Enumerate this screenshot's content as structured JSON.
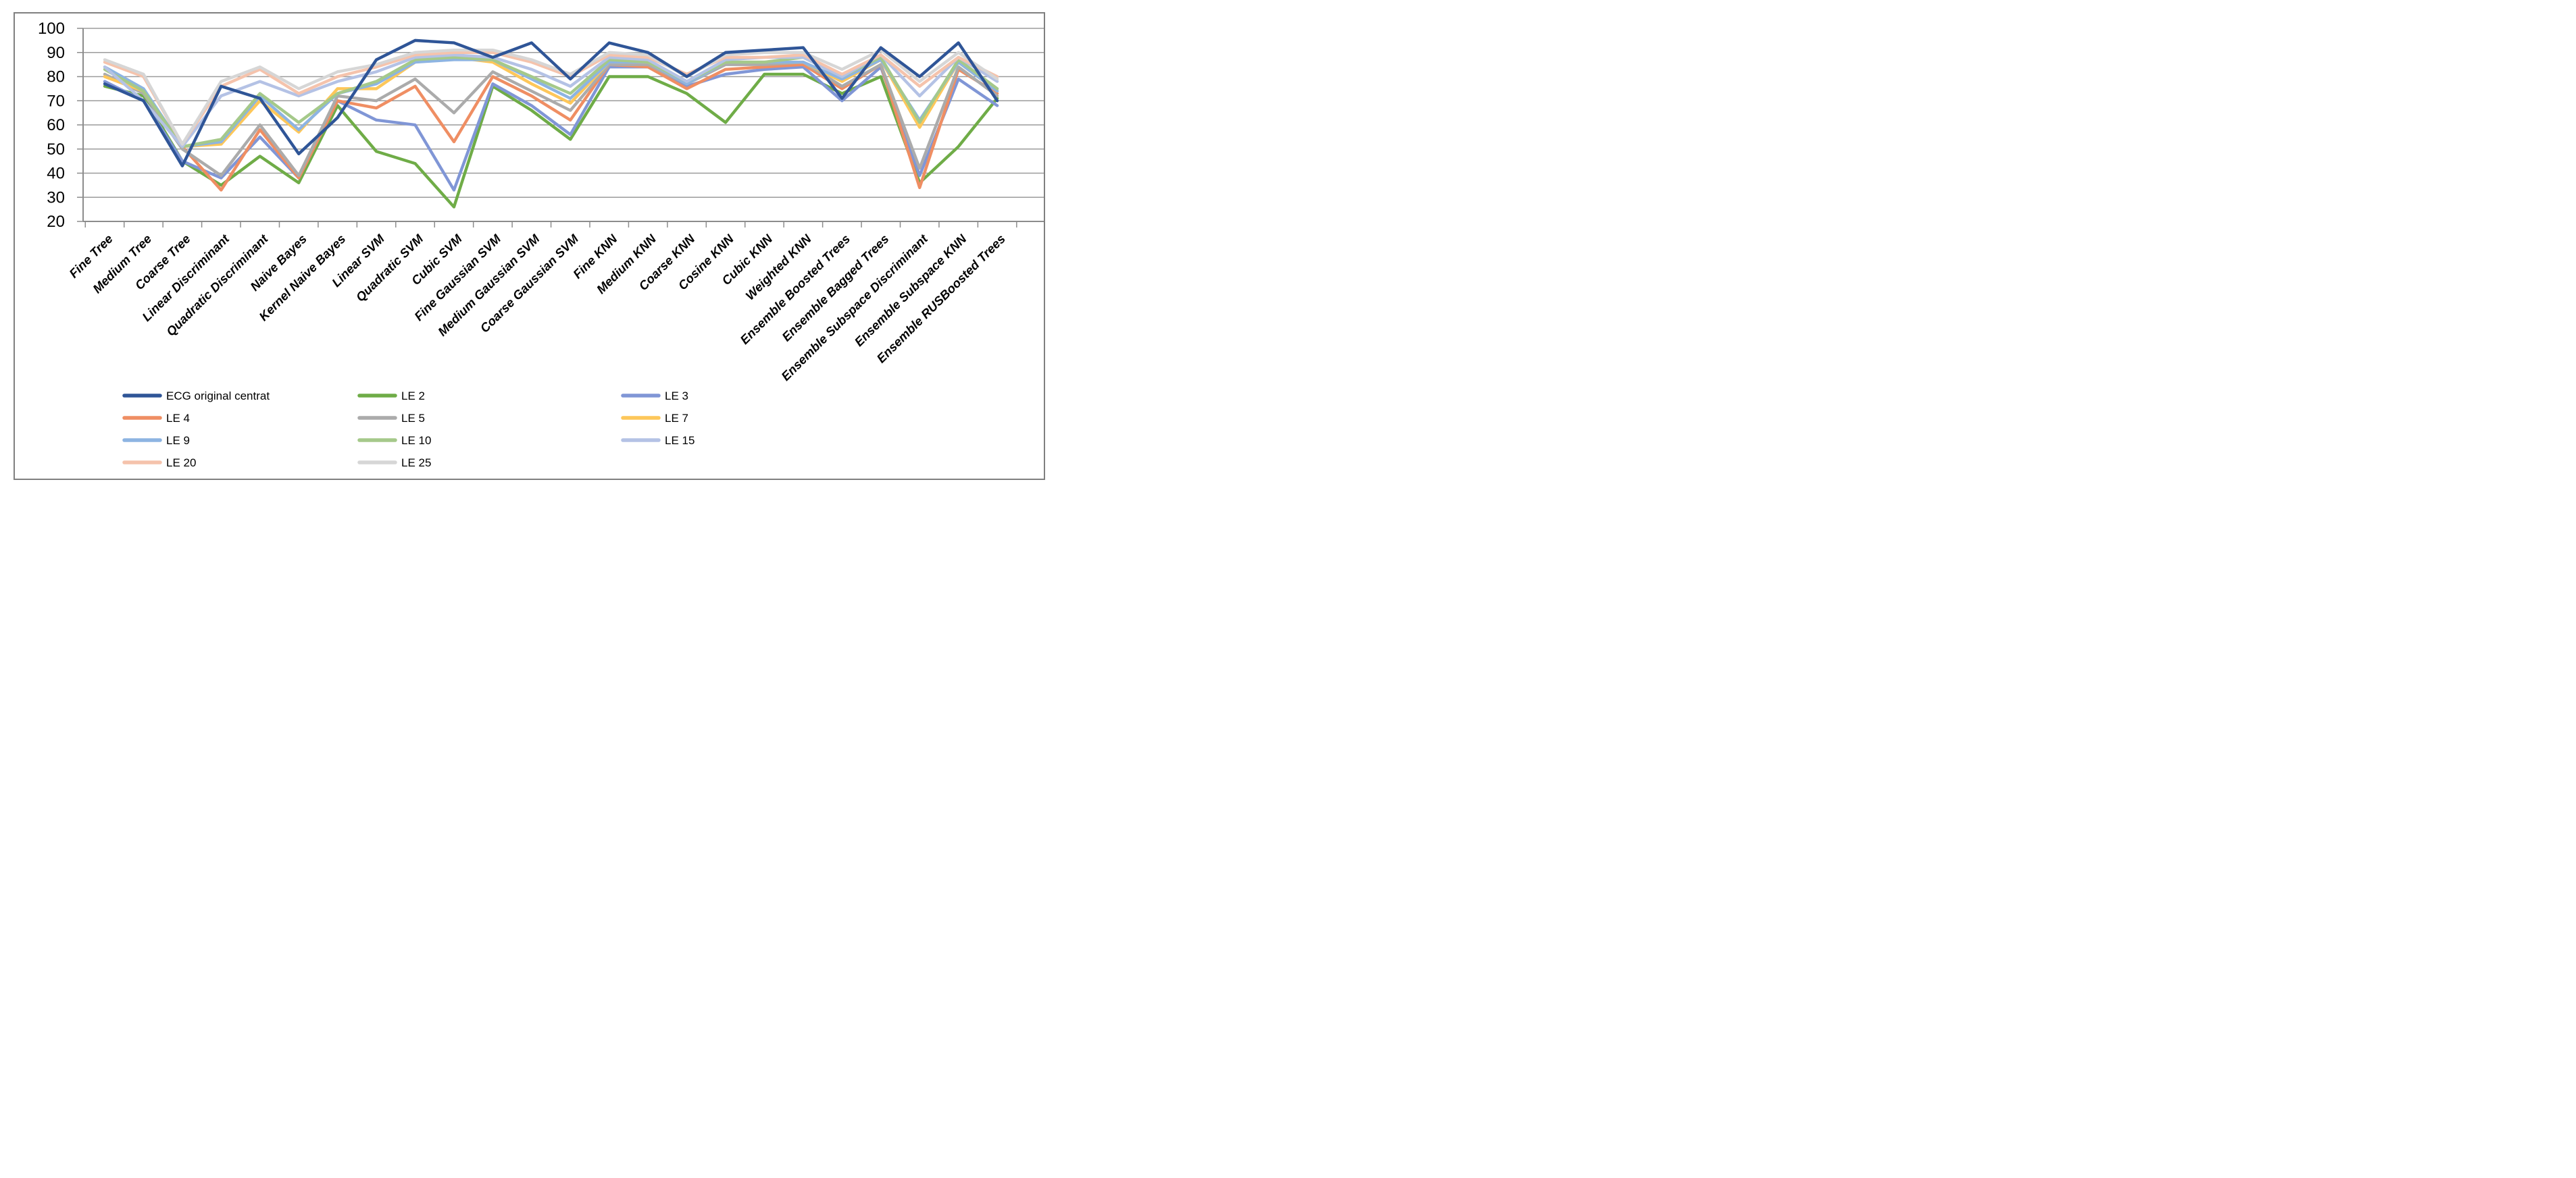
{
  "chart_data": {
    "type": "line",
    "title": "",
    "xlabel": "",
    "ylabel": "",
    "ylim": [
      20,
      100
    ],
    "ytick_step": 10,
    "y_ticks": [
      "100",
      "90",
      "80",
      "70",
      "60",
      "50",
      "40",
      "30",
      "20"
    ],
    "grid": "horizontal",
    "legend_position": "bottom",
    "categories": [
      "Fine Tree",
      "Medium Tree",
      "Coarse Tree",
      "Linear Discriminant",
      "Quadratic Discriminant",
      "Naive Bayes",
      "Kernel Naive Bayes",
      "Linear SVM",
      "Quadratic SVM",
      "Cubic SVM",
      "Fine Gaussian SVM",
      "Medium Gaussian SVM",
      "Coarse Gaussian SVM",
      "Fine KNN",
      "Medium KNN",
      "Coarse KNN",
      "Cosine KNN",
      "Cubic KNN",
      "Weighted KNN",
      "Ensemble Boosted Trees",
      "Ensemble Bagged Trees",
      "Ensemble Subspace Discriminant",
      "Ensemble Subspace KNN",
      "Ensemble RUSBoosted Trees"
    ],
    "series": [
      {
        "name": "ECG original centrat",
        "color": "#2F5597",
        "values": [
          77,
          70,
          43,
          76,
          71,
          48,
          63,
          87,
          95,
          94,
          88,
          94,
          79,
          94,
          90,
          80,
          90,
          91,
          92,
          71,
          92,
          80,
          94,
          70
        ]
      },
      {
        "name": "LE 2",
        "color": "#6FAC47",
        "values": [
          76,
          72,
          45,
          35,
          47,
          36,
          68,
          49,
          44,
          26,
          76,
          66,
          54,
          80,
          80,
          73,
          61,
          81,
          81,
          73,
          80,
          36,
          51,
          71
        ]
      },
      {
        "name": "LE 3",
        "color": "#8096D6",
        "values": [
          78,
          70,
          45,
          38,
          55,
          38,
          70,
          62,
          60,
          33,
          77,
          68,
          56,
          84,
          84,
          76,
          81,
          83,
          84,
          70,
          84,
          39,
          79,
          68
        ]
      },
      {
        "name": "LE 4",
        "color": "#EF8E63",
        "values": [
          80,
          74,
          51,
          33,
          58,
          38,
          70,
          67,
          76,
          53,
          80,
          72,
          62,
          85,
          84,
          75,
          83,
          84,
          85,
          75,
          85,
          34,
          83,
          73
        ]
      },
      {
        "name": "LE 5",
        "color": "#ABABAB",
        "values": [
          81,
          73,
          50,
          39,
          60,
          39,
          72,
          70,
          79,
          65,
          82,
          74,
          66,
          85,
          85,
          77,
          85,
          85,
          86,
          76,
          85,
          42,
          84,
          72
        ]
      },
      {
        "name": "LE 7",
        "color": "#FDC75A",
        "values": [
          80,
          74,
          51,
          52,
          70,
          57,
          75,
          75,
          86,
          88,
          86,
          77,
          69,
          86,
          86,
          77,
          86,
          86,
          86,
          78,
          87,
          59,
          86,
          74
        ]
      },
      {
        "name": "LE 9",
        "color": "#8DB4E2",
        "values": [
          84,
          75,
          51,
          53,
          72,
          58,
          73,
          77,
          86,
          87,
          87,
          79,
          71,
          86,
          86,
          77,
          86,
          86,
          86,
          79,
          87,
          62,
          86,
          74
        ]
      },
      {
        "name": "LE 10",
        "color": "#A5C98A",
        "values": [
          83,
          74,
          51,
          54,
          73,
          61,
          73,
          78,
          87,
          88,
          87,
          80,
          73,
          87,
          86,
          78,
          86,
          86,
          88,
          80,
          88,
          61,
          87,
          75
        ]
      },
      {
        "name": "LE 15",
        "color": "#B4C2E5",
        "values": [
          84,
          70,
          51,
          72,
          78,
          72,
          78,
          82,
          88,
          89,
          88,
          83,
          76,
          88,
          87,
          78,
          87,
          88,
          88,
          80,
          89,
          72,
          88,
          78
        ]
      },
      {
        "name": "LE 20",
        "color": "#F5C3AC",
        "values": [
          86,
          80,
          52,
          76,
          83,
          73,
          80,
          84,
          89,
          90,
          90,
          86,
          80,
          89,
          88,
          81,
          88,
          88,
          89,
          81,
          89,
          76,
          88,
          80
        ]
      },
      {
        "name": "LE 25",
        "color": "#D6D6D6",
        "values": [
          87,
          81,
          52,
          78,
          84,
          75,
          82,
          85,
          90,
          91,
          91,
          87,
          81,
          90,
          89,
          80,
          89,
          90,
          90,
          83,
          91,
          78,
          90,
          79
        ]
      }
    ]
  },
  "legend": {
    "columns": 3,
    "items": [
      "ECG original centrat",
      "LE 2",
      "LE 3",
      "LE 4",
      "LE 5",
      "LE 7",
      "LE 9",
      "LE 10",
      "LE 15",
      "LE 20",
      "LE 25"
    ]
  },
  "axis_colors": {
    "grid": "#9B9B9B",
    "axis": "#8C8C8C",
    "frame": "#7F7F7F"
  }
}
